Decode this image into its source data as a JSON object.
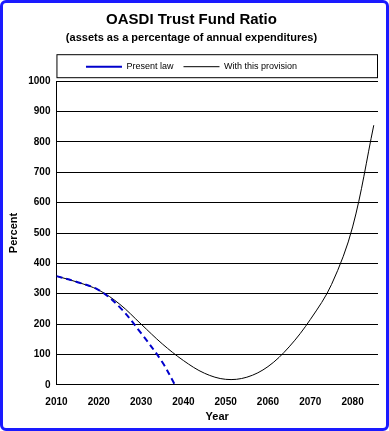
{
  "chart_data": {
    "type": "line",
    "title": "OASDI Trust Fund Ratio",
    "subtitle": "(assets as a percentage of annual expenditures)",
    "x_label": "Year",
    "y_label": "Percent",
    "xlim": [
      2010,
      2086
    ],
    "xticks": [
      2010,
      2020,
      2030,
      2040,
      2050,
      2060,
      2070,
      2080
    ],
    "ylim": [
      0,
      1000
    ],
    "yticks": [
      0,
      100,
      200,
      300,
      400,
      500,
      600,
      700,
      800,
      900,
      1000
    ],
    "grid": true,
    "legend": "top",
    "series": [
      {
        "name": "Present law",
        "color": "#0000cc",
        "line_style": "dashed",
        "x": [
          2010,
          2015,
          2020,
          2025,
          2030,
          2035,
          2038
        ],
        "values": [
          358,
          338,
          312,
          255,
          170,
          75,
          0
        ]
      },
      {
        "name": "With this provision",
        "color": "#000000",
        "line_style": "solid",
        "x": [
          2010,
          2015,
          2020,
          2025,
          2030,
          2035,
          2040,
          2045,
          2050,
          2055,
          2060,
          2065,
          2070,
          2075,
          2080,
          2085
        ],
        "values": [
          358,
          338,
          312,
          265,
          200,
          135,
          80,
          38,
          18,
          25,
          60,
          125,
          215,
          330,
          520,
          855
        ]
      }
    ]
  }
}
